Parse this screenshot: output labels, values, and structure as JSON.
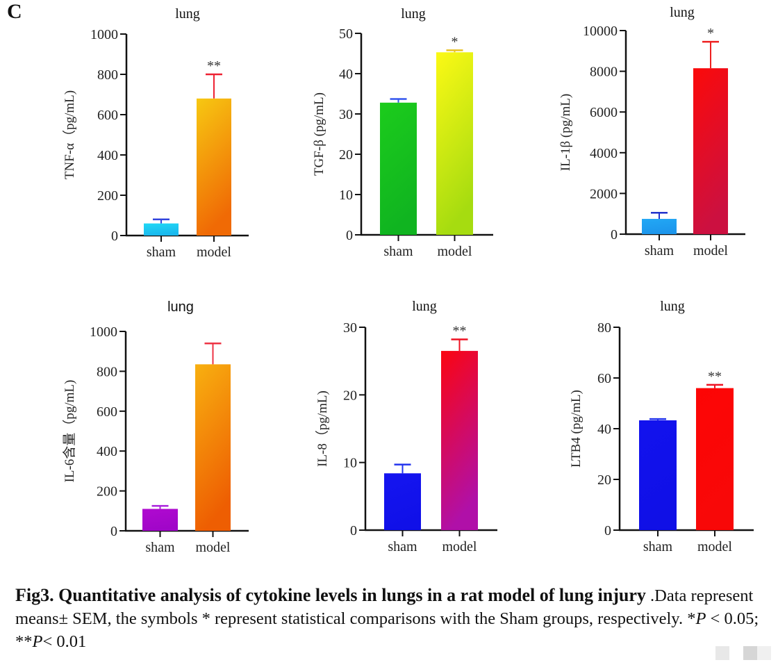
{
  "panel_label": "C",
  "chart_data": [
    {
      "type": "bar",
      "title": "lung",
      "ylabel": "TNF-α（pg/mL)",
      "xlabel": "",
      "categories": [
        "sham",
        "model"
      ],
      "values": [
        60,
        680
      ],
      "errors": [
        20,
        120
      ],
      "significance": [
        "",
        "**"
      ],
      "colors": [
        [
          "#20d8f5",
          "#1ab8ee"
        ],
        [
          "#f7c812",
          "#f06a05"
        ]
      ],
      "error_colors": [
        "#3344dd",
        "#ee2233"
      ],
      "ylim": [
        0,
        1000
      ],
      "yticks": [
        0,
        200,
        400,
        600,
        800,
        1000
      ]
    },
    {
      "type": "bar",
      "title": "lung",
      "ylabel": "TGF-β (pg/mL)",
      "xlabel": "",
      "categories": [
        "sham",
        "model"
      ],
      "values": [
        32.8,
        45.3
      ],
      "errors": [
        0.9,
        0.5
      ],
      "significance": [
        "",
        "*"
      ],
      "colors": [
        [
          "#1ccc1c",
          "#10b420"
        ],
        [
          "#fcf915",
          "#a6dc10"
        ]
      ],
      "error_colors": [
        "#3355ee",
        "#e8c020"
      ],
      "ylim": [
        0,
        50
      ],
      "yticks": [
        0,
        10,
        20,
        30,
        40,
        50
      ]
    },
    {
      "type": "bar",
      "title": "lung",
      "ylabel": "IL-1β (pg/mL)",
      "xlabel": "",
      "categories": [
        "sham",
        "model"
      ],
      "values": [
        750,
        8150
      ],
      "errors": [
        300,
        1300
      ],
      "significance": [
        "",
        "*"
      ],
      "colors": [
        [
          "#22a8f5",
          "#1d96ec"
        ],
        [
          "#fb0a0a",
          "#cc1040"
        ]
      ],
      "error_colors": [
        "#2233cc",
        "#ee2020"
      ],
      "ylim": [
        0,
        10000
      ],
      "yticks": [
        0,
        2000,
        4000,
        6000,
        8000,
        10000
      ]
    },
    {
      "type": "bar",
      "title": "lung",
      "ylabel": "IL-6含量（pg/mL)",
      "xlabel": "",
      "categories": [
        "sham",
        "model"
      ],
      "values": [
        110,
        835
      ],
      "errors": [
        15,
        105
      ],
      "significance": [
        "",
        ""
      ],
      "colors": [
        [
          "#b00ad0",
          "#a006c8"
        ],
        [
          "#f8b010",
          "#ee5e02"
        ]
      ],
      "error_colors": [
        "#aa22dd",
        "#ee3344"
      ],
      "ylim": [
        0,
        1000
      ],
      "yticks": [
        0,
        200,
        400,
        600,
        800,
        1000
      ]
    },
    {
      "type": "bar",
      "title": "lung",
      "ylabel": "IL-8（pg/mL)",
      "xlabel": "",
      "categories": [
        "sham",
        "model"
      ],
      "values": [
        8.4,
        26.5
      ],
      "errors": [
        1.3,
        1.7
      ],
      "significance": [
        "",
        "**"
      ],
      "colors": [
        [
          "#1515f0",
          "#1010e8"
        ],
        [
          "#fb0510",
          "#b010a8"
        ]
      ],
      "error_colors": [
        "#2233ee",
        "#ee1122"
      ],
      "ylim": [
        0,
        30
      ],
      "yticks": [
        0,
        10,
        20,
        30
      ]
    },
    {
      "type": "bar",
      "title": "lung",
      "ylabel": "LTB4 (pg/mL)",
      "xlabel": "",
      "categories": [
        "sham",
        "model"
      ],
      "values": [
        43.3,
        56.0
      ],
      "errors": [
        0.5,
        1.3
      ],
      "significance": [
        "",
        "**"
      ],
      "colors": [
        [
          "#1212ee",
          "#1010e6"
        ],
        [
          "#fd0505",
          "#f80808"
        ]
      ],
      "error_colors": [
        "#2233ee",
        "#ee1122"
      ],
      "ylim": [
        0,
        80
      ],
      "yticks": [
        0,
        20,
        40,
        60,
        80
      ]
    }
  ],
  "caption": {
    "title_bold": "Fig3. Quantitative analysis of  cytokine levels in lungs in a rat model of lung injury",
    "text_1": " .Data represent means± SEM, the symbols * represent statistical comparisons with the Sham  groups, respectively. *",
    "p1_label": "P",
    "text_2": " < 0.05;  **",
    "p2_label": "P",
    "text_3": "< 0.01"
  }
}
